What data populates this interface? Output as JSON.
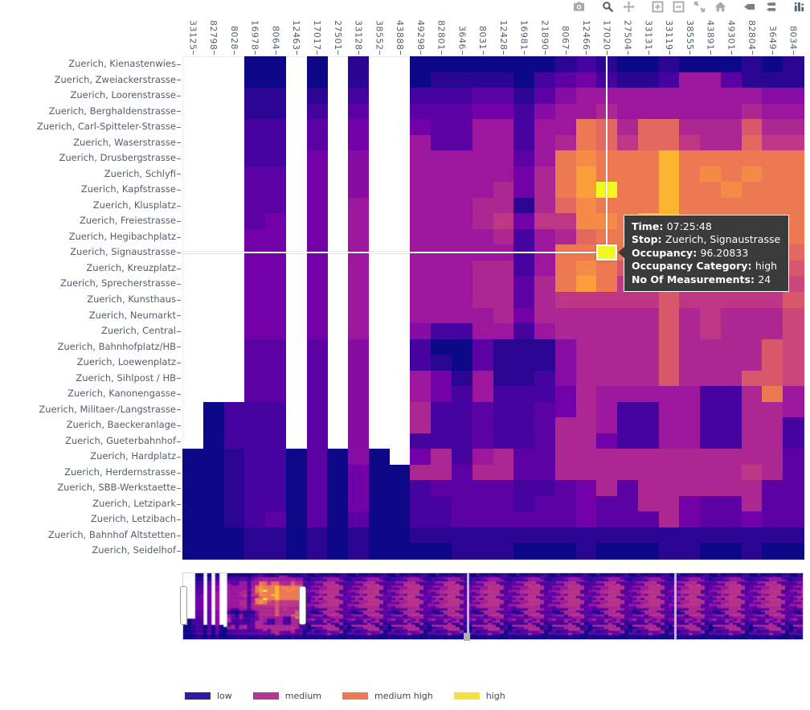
{
  "toolbar": {
    "icons": [
      "camera-icon",
      "zoom-icon",
      "pan-icon",
      "zoom-in-icon",
      "zoom-out-icon",
      "autoscale-icon",
      "reset-axes-home-icon",
      "hover-closest-icon",
      "hover-compare-icon",
      "plotly-logo-icon"
    ],
    "active_tool": "zoom"
  },
  "tooltip": {
    "lines": [
      {
        "label": "Time",
        "value": "07:25:48"
      },
      {
        "label": "Stop",
        "value": "Zuerich, Signaustrasse"
      },
      {
        "label": "Occupancy",
        "value": "96.20833"
      },
      {
        "label": "Occupancy Category",
        "value": "high"
      },
      {
        "label": "No Of Measurements",
        "value": "24"
      }
    ]
  },
  "chart_data": {
    "type": "heatmap",
    "xlabel": "",
    "ylabel": "",
    "x_tick_labels": [
      "33125",
      "82798",
      "8028",
      "16978",
      "8064",
      "12463",
      "17017",
      "27501",
      "33128",
      "38552",
      "43888",
      "49298",
      "82801",
      "3646",
      "8031",
      "12428",
      "16981",
      "21890",
      "8067",
      "12466",
      "17020",
      "27504",
      "33131",
      "33119",
      "38555",
      "43891",
      "49301",
      "82804",
      "3649",
      "8034"
    ],
    "y_tick_labels": [
      "Zuerich, Kienastenwies",
      "Zuerich, Zweiackerstrasse",
      "Zuerich, Loorenstrasse",
      "Zuerich, Berghaldenstrasse",
      "Zuerich, Carl-Spitteler-Strasse",
      "Zuerich, Waserstrasse",
      "Zuerich, Drusbergstrasse",
      "Zuerich, Schlyfi",
      "Zuerich, Kapfstrasse",
      "Zuerich, Klusplatz",
      "Zuerich, Freiestrasse",
      "Zuerich, Hegibachplatz",
      "Zuerich, Signaustrasse",
      "Zuerich, Kreuzplatz",
      "Zuerich, Sprecherstrasse",
      "Zuerich, Kunsthaus",
      "Zuerich, Neumarkt",
      "Zuerich, Central",
      "Zuerich, Bahnhofplatz/HB",
      "Zuerich, Loewenplatz",
      "Zuerich, Sihlpost / HB",
      "Zuerich, Kanonengasse",
      "Zuerich, Militaer-/Langstrasse",
      "Zuerich, Baeckeranlage",
      "Zuerich, Gueterbahnhof",
      "Zuerich, Hardplatz",
      "Zuerich, Herdernstrasse",
      "Zuerich, SBB-Werkstaette",
      "Zuerich, Letzipark",
      "Zuerich, Letzibach",
      "Zuerich, Bahnhof Altstetten",
      "Zuerich, Seidelhof"
    ],
    "value_scale_note": "0 = no data (white); 1..10 = occupancy level mapped onto plasma colormap (1=lowest, 10=highest)",
    "colormap": "plasma",
    "plasma_stops": [
      "#0d0887",
      "#46039f",
      "#7201a8",
      "#9c179e",
      "#bd3786",
      "#d8576b",
      "#ed7953",
      "#fb9f3a",
      "#fdca26",
      "#f0f921"
    ],
    "levels": [
      [
        0,
        0,
        0,
        1,
        1,
        0,
        1,
        0,
        1.5,
        0,
        0,
        1,
        1,
        1,
        1,
        1,
        1,
        1,
        1.5,
        2,
        1.5,
        1,
        1,
        1.5,
        1,
        1,
        1,
        1.5,
        1,
        1.5
      ],
      [
        0,
        0,
        0,
        1,
        1,
        0,
        1,
        0,
        1.5,
        0,
        0,
        1,
        1.5,
        1.5,
        1.5,
        1.5,
        1,
        2,
        2.5,
        3,
        2,
        1.5,
        1.5,
        2,
        4,
        4,
        2.5,
        1.5,
        1.5,
        1.5
      ],
      [
        0,
        0,
        0,
        1.5,
        1.5,
        0,
        1.5,
        0,
        2,
        0,
        0,
        2,
        2,
        2,
        2.5,
        2.5,
        1.5,
        2.5,
        3.5,
        4,
        4,
        4,
        4,
        4,
        4,
        4,
        4,
        4,
        3.5,
        3.5
      ],
      [
        0,
        0,
        0,
        1.5,
        1.5,
        0,
        2,
        0,
        2.5,
        0,
        0,
        2.5,
        2.5,
        2.5,
        3,
        3,
        2,
        3.5,
        4,
        4,
        4.5,
        4,
        4,
        4,
        4,
        4,
        4,
        4.5,
        4,
        4
      ],
      [
        0,
        0,
        0,
        2,
        2,
        0,
        2.5,
        0,
        3,
        0,
        0,
        3,
        2.5,
        2.5,
        4,
        4,
        2,
        4,
        4,
        7,
        6.5,
        4.5,
        6.5,
        6.5,
        4.5,
        4.5,
        4.5,
        6,
        4.5,
        4.5
      ],
      [
        0,
        0,
        0,
        2,
        2,
        0,
        2.5,
        0,
        3,
        0,
        0,
        4,
        2.5,
        2.5,
        4,
        4,
        2,
        4,
        4.5,
        7,
        6.5,
        5,
        6.5,
        6.5,
        5,
        4.5,
        4.5,
        6.5,
        5,
        5
      ],
      [
        0,
        0,
        0,
        2,
        2,
        0,
        3,
        0,
        3.5,
        0,
        0,
        4,
        4,
        4,
        4,
        4,
        2.5,
        4,
        7,
        7.5,
        7,
        7,
        7,
        8.5,
        7,
        7,
        7,
        7,
        7,
        7
      ],
      [
        0,
        0,
        0,
        2.5,
        2.5,
        0,
        3,
        0,
        3.5,
        0,
        0,
        4,
        4,
        4,
        4,
        4,
        3,
        4.5,
        7,
        8,
        7,
        7,
        7,
        8.5,
        7,
        7.5,
        7,
        7.5,
        7,
        7
      ],
      [
        0,
        0,
        0,
        2.5,
        2.5,
        0,
        3,
        0,
        3.5,
        0,
        0,
        4,
        4,
        4,
        4,
        4.5,
        3,
        4.5,
        7,
        8,
        10,
        7,
        7,
        8.5,
        7,
        7,
        7.5,
        7,
        7,
        7
      ],
      [
        0,
        0,
        0,
        2.5,
        2.5,
        0,
        3,
        0,
        4,
        0,
        0,
        4,
        4,
        4,
        4.5,
        4.5,
        1.5,
        4.5,
        6.5,
        7.5,
        7,
        7,
        7,
        8.5,
        7,
        7,
        7,
        7,
        7,
        7
      ],
      [
        0,
        0,
        0,
        2.5,
        3,
        0,
        3,
        0,
        4,
        0,
        0,
        4,
        4,
        4,
        4.5,
        5,
        3,
        5,
        5,
        7.5,
        7.5,
        7,
        8.5,
        8.5,
        7,
        7,
        7,
        7,
        7,
        7
      ],
      [
        0,
        0,
        0,
        3,
        3,
        0,
        3,
        0,
        4,
        0,
        0,
        4,
        4,
        4,
        4,
        4.5,
        2,
        4,
        4.5,
        6.5,
        7,
        7,
        7,
        8.5,
        7,
        7,
        7,
        7,
        7,
        7
      ],
      [
        0,
        0,
        0,
        3,
        3,
        0,
        3,
        0,
        4,
        0,
        0,
        4,
        4,
        4,
        4,
        4,
        2,
        4,
        7,
        7,
        10,
        7,
        7,
        8.5,
        7,
        7,
        7,
        7,
        7,
        6.5
      ],
      [
        0,
        0,
        0,
        3,
        3,
        0,
        3,
        0,
        4,
        0,
        0,
        4,
        4,
        4,
        4.5,
        4.5,
        2,
        4,
        7,
        7.5,
        7,
        6,
        5,
        6,
        5,
        5,
        5,
        5,
        5,
        6
      ],
      [
        0,
        0,
        0,
        3,
        3,
        0,
        3,
        0,
        4,
        0,
        0,
        4,
        4,
        4,
        4.5,
        4.5,
        2.5,
        4.5,
        7,
        8,
        7,
        5,
        5,
        6,
        5,
        5,
        5,
        5,
        5,
        5.5
      ],
      [
        0,
        0,
        0,
        3,
        3,
        0,
        3,
        0,
        4,
        0,
        0,
        4,
        4,
        4,
        4.5,
        4.5,
        2.5,
        4.5,
        5,
        5,
        5,
        5,
        5,
        6,
        5,
        5,
        5,
        5,
        5,
        6
      ],
      [
        0,
        0,
        0,
        3,
        3,
        0,
        3,
        0,
        4,
        0,
        0,
        4,
        4,
        4,
        4,
        4.5,
        3,
        4.5,
        4.5,
        4.5,
        4.5,
        4.5,
        4.5,
        6,
        4.5,
        5,
        4.5,
        4.5,
        4.5,
        5.5
      ],
      [
        0,
        0,
        0,
        3,
        3,
        0,
        3,
        0,
        4,
        0,
        0,
        3.5,
        2,
        2,
        4,
        4,
        2,
        4,
        4.5,
        4.5,
        4.5,
        4.5,
        4.5,
        6,
        4.5,
        5,
        4.5,
        4.5,
        4.5,
        5.5
      ],
      [
        0,
        0,
        0,
        2.5,
        2.5,
        0,
        2.5,
        0,
        3.5,
        0,
        0,
        2,
        1,
        1,
        2.5,
        1.5,
        1.5,
        1.5,
        3.5,
        4.5,
        4.5,
        4.5,
        4.5,
        6,
        4.5,
        4.5,
        4.5,
        4.5,
        6,
        5.5
      ],
      [
        0,
        0,
        0,
        2.5,
        2.5,
        0,
        2.5,
        0,
        3.5,
        0,
        0,
        2,
        1.5,
        1,
        2.5,
        1.5,
        1.5,
        1.5,
        3.5,
        4.5,
        4.5,
        4.5,
        4.5,
        6,
        4.5,
        4.5,
        4.5,
        4.5,
        6,
        5.5
      ],
      [
        0,
        0,
        0,
        2.5,
        2.5,
        0,
        2.5,
        0,
        3.5,
        0,
        0,
        4,
        3,
        1.5,
        4,
        1.5,
        1.5,
        2,
        3.5,
        4.5,
        4.5,
        4.5,
        4.5,
        6,
        4.5,
        4.5,
        4.5,
        6,
        6,
        5.5
      ],
      [
        0,
        0,
        0,
        2.5,
        2.5,
        0,
        2.5,
        0,
        3.5,
        0,
        0,
        4,
        3,
        2,
        4,
        2,
        2,
        2,
        3,
        4.5,
        4,
        4,
        4,
        4,
        4,
        2,
        2,
        4.5,
        7,
        4
      ],
      [
        0,
        1,
        2,
        2,
        2,
        0,
        2.5,
        0,
        3.5,
        0,
        0,
        4.5,
        2,
        2,
        2.5,
        2,
        2,
        2.5,
        3,
        4.5,
        4,
        2,
        2,
        4,
        4,
        2,
        2,
        4.5,
        4.5,
        4
      ],
      [
        0,
        1,
        2,
        2,
        2,
        0,
        2.5,
        0,
        3.5,
        0,
        0,
        4.5,
        2,
        2,
        2.5,
        2,
        2,
        2.5,
        4.5,
        4.5,
        4,
        2,
        2,
        4,
        4,
        2,
        2,
        4.5,
        4.5,
        2
      ],
      [
        0,
        1,
        2,
        2,
        2,
        0,
        2.5,
        0,
        3.5,
        0,
        0,
        2,
        2,
        2,
        2.5,
        2,
        2,
        2.5,
        4.5,
        4.5,
        3,
        2,
        2,
        4,
        4,
        2,
        2,
        4.5,
        4.5,
        2
      ],
      [
        1,
        1,
        1.5,
        2,
        2,
        1,
        2.5,
        1,
        3.5,
        1,
        0,
        3,
        4.5,
        2,
        4,
        4.5,
        2.5,
        2.5,
        4.5,
        4.5,
        4.5,
        4.5,
        4.5,
        4.5,
        4.5,
        4.5,
        4.5,
        4.5,
        4.5,
        2.5
      ],
      [
        1,
        1,
        1.5,
        2,
        2,
        1,
        2.5,
        1,
        3,
        1,
        1,
        4.5,
        4.5,
        2.5,
        4.5,
        4.5,
        2.5,
        2.5,
        4.5,
        4.5,
        4.5,
        4.5,
        4.5,
        4.5,
        4.5,
        4.5,
        4.5,
        5,
        4.5,
        2.5
      ],
      [
        1,
        1,
        1.5,
        2,
        2,
        1,
        2.5,
        1,
        3,
        1,
        1,
        2,
        2.5,
        2.5,
        2.5,
        2.5,
        2,
        2,
        2.5,
        3,
        4.5,
        2.5,
        4.5,
        4.5,
        4.5,
        4.5,
        4.5,
        4.5,
        2.5,
        2.5
      ],
      [
        1,
        1,
        1.5,
        2,
        2,
        1,
        2.5,
        1,
        3,
        1,
        1,
        2,
        2,
        2.5,
        2.5,
        2.5,
        2,
        2.5,
        2.5,
        3,
        2.5,
        2.5,
        4.5,
        4.5,
        3,
        2.5,
        2.5,
        4.5,
        2.5,
        2.5
      ],
      [
        1,
        1,
        1.5,
        2,
        2.5,
        1,
        2.5,
        1,
        2.5,
        1,
        1,
        2,
        2,
        2.5,
        2.5,
        2.5,
        2.5,
        2.5,
        2.5,
        3,
        2.5,
        2.5,
        2.5,
        4.5,
        3,
        2.5,
        2.5,
        3,
        2.5,
        2.5
      ],
      [
        1,
        1,
        1,
        1.5,
        1.5,
        1,
        1.5,
        1,
        1.5,
        1,
        1,
        1.5,
        1.5,
        1.5,
        1.5,
        1.5,
        1.5,
        1.5,
        1.5,
        1.5,
        1.5,
        1.5,
        1.5,
        1.5,
        1.5,
        1.5,
        1.5,
        1.5,
        1.5,
        1.5
      ],
      [
        1,
        1,
        1,
        1.5,
        1.5,
        1,
        1.5,
        1,
        1.5,
        1,
        1,
        1,
        1,
        1.5,
        1.5,
        1.5,
        1,
        1,
        1,
        1.5,
        1,
        1,
        1,
        1.5,
        1.5,
        1,
        1,
        1.5,
        1,
        1
      ]
    ],
    "highlight": {
      "row_index": 12,
      "col_index": 20,
      "x_label": "17020",
      "y_label": "Zuerich, Signaustrasse",
      "occupancy": 96.20833,
      "category": "high",
      "measurements": 24
    },
    "legend": {
      "position": "bottom-left",
      "items": [
        {
          "label": "low",
          "color": "#2e1c9e"
        },
        {
          "label": "medium",
          "color": "#b13a90"
        },
        {
          "label": "medium high",
          "color": "#ec7a57"
        },
        {
          "label": "high",
          "color": "#f4e23c"
        }
      ]
    },
    "rangeslider": {
      "handle_fractions": [
        0.0,
        0.193
      ],
      "grid": "off"
    }
  }
}
